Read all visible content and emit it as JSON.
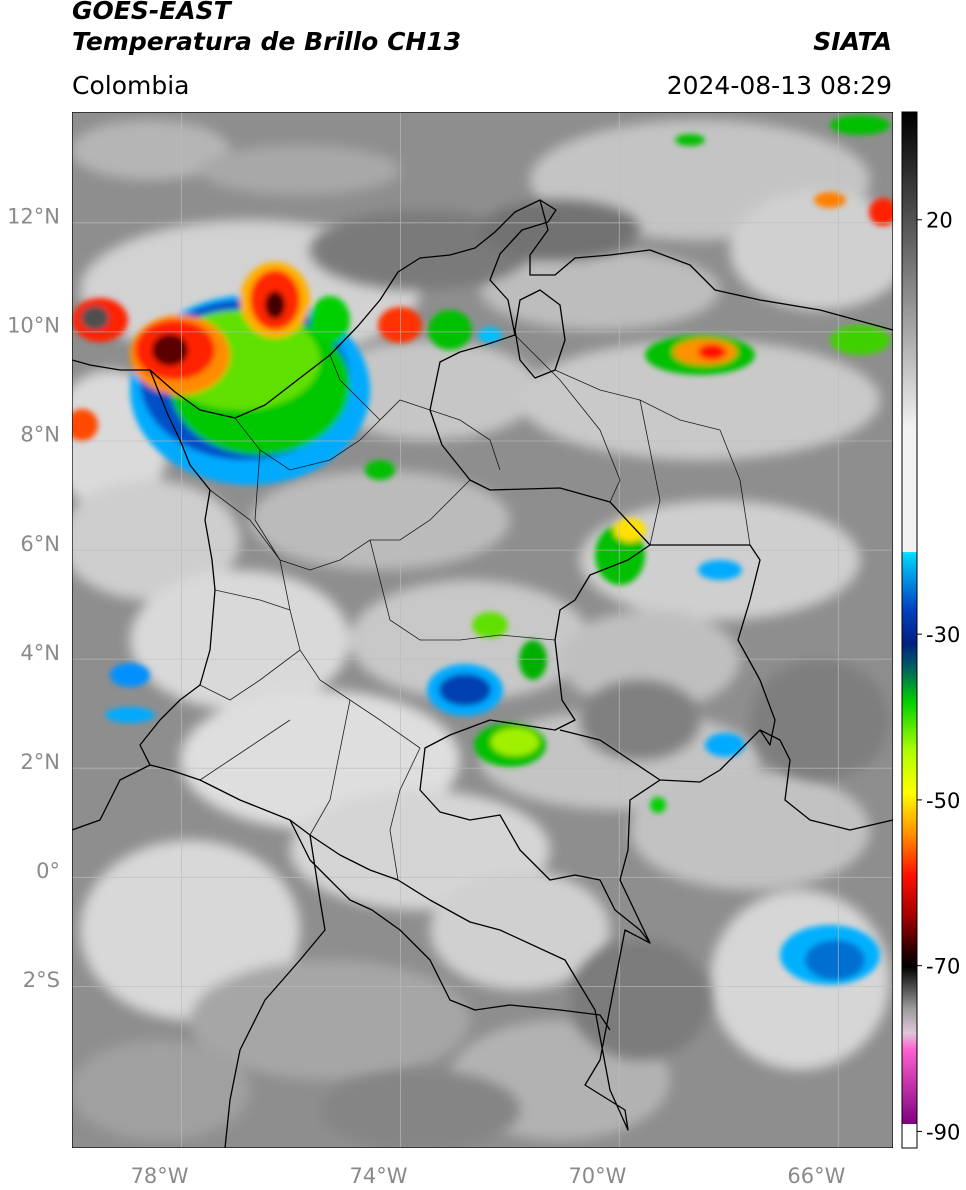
{
  "header": {
    "title_line1": "GOES-EAST",
    "title_line2": "Temperatura de Brillo CH13",
    "region": "Colombia",
    "source": "SIATA",
    "timestamp": "2024-08-13 08:29"
  },
  "map": {
    "projection": "PlateCarree",
    "lon_range": [
      -79.6,
      -64.6
    ],
    "lat_range": [
      -5.1,
      13.9
    ],
    "lat_ticks": [
      {
        "value": 12,
        "label": "12°N"
      },
      {
        "value": 10,
        "label": "10°N"
      },
      {
        "value": 8,
        "label": "8°N"
      },
      {
        "value": 6,
        "label": "6°N"
      },
      {
        "value": 4,
        "label": "4°N"
      },
      {
        "value": 2,
        "label": "2°N"
      },
      {
        "value": 0,
        "label": "0°"
      },
      {
        "value": -2,
        "label": "2°S"
      }
    ],
    "lon_ticks": [
      {
        "value": -78,
        "label": "78°W"
      },
      {
        "value": -74,
        "label": "74°W"
      },
      {
        "value": -70,
        "label": "70°W"
      },
      {
        "value": -66,
        "label": "66°W"
      }
    ],
    "gridlines": true,
    "colors": {
      "background_gray": "#8e8e8e",
      "border_lines": "#000000",
      "grid_lines": "#bdbdbd"
    }
  },
  "colorbar": {
    "range": [
      -92,
      33
    ],
    "ticks": [
      {
        "value": 20,
        "label": "20"
      },
      {
        "value": -30,
        "label": "-30"
      },
      {
        "value": -50,
        "label": "-50"
      },
      {
        "value": -70,
        "label": "-70"
      },
      {
        "value": -90,
        "label": "-90"
      }
    ],
    "stops": [
      {
        "value": 33,
        "color": "#000000"
      },
      {
        "value": -5,
        "color": "#f2f2f2"
      },
      {
        "value": -20,
        "color": "#f2f2f2"
      },
      {
        "value": -20.1,
        "color": "#00d8ff"
      },
      {
        "value": -27,
        "color": "#0040c0"
      },
      {
        "value": -31,
        "color": "#002080"
      },
      {
        "value": -34,
        "color": "#006060"
      },
      {
        "value": -38,
        "color": "#00d000"
      },
      {
        "value": -44,
        "color": "#b0ff00"
      },
      {
        "value": -49,
        "color": "#ffff00"
      },
      {
        "value": -54,
        "color": "#ff9000"
      },
      {
        "value": -59,
        "color": "#ff1000"
      },
      {
        "value": -64,
        "color": "#a00000"
      },
      {
        "value": -68,
        "color": "#300000"
      },
      {
        "value": -70,
        "color": "#000000"
      },
      {
        "value": -75,
        "color": "#9a9a9a"
      },
      {
        "value": -78,
        "color": "#e0c8d8"
      },
      {
        "value": -80,
        "color": "#ff60d0"
      },
      {
        "value": -89,
        "color": "#800080"
      },
      {
        "value": -89.1,
        "color": "#ffffff"
      },
      {
        "value": -92,
        "color": "#ffffff"
      }
    ]
  }
}
